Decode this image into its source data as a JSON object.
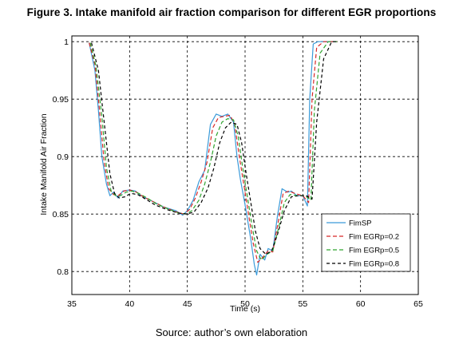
{
  "figure": {
    "title": "Figure 3. Intake manifold air fraction comparison for different EGR proportions",
    "source": "Source: author’s own elaboration"
  },
  "chart_data": {
    "type": "line",
    "xlabel": "Time (s)",
    "ylabel": "Intake Manifold Air Fraction",
    "xlim": [
      35,
      65
    ],
    "ylim": [
      0.78,
      1.005
    ],
    "xticks": [
      35,
      40,
      45,
      50,
      55,
      60,
      65
    ],
    "xtick_labels": [
      "35",
      "40",
      "45",
      "50",
      "55",
      "60",
      "65"
    ],
    "yticks": [
      0.8,
      0.85,
      0.9,
      0.95,
      1
    ],
    "ytick_labels": [
      "0.8",
      "0.85",
      "0.9",
      "0.95",
      "1"
    ],
    "grid": true,
    "legend_position": "bottom-right",
    "series": [
      {
        "name": "FimSP",
        "color": "#3a9ad9",
        "dash": "solid",
        "points": [
          [
            36.5,
            0.999
          ],
          [
            37.0,
            0.975
          ],
          [
            37.3,
            0.94
          ],
          [
            37.6,
            0.9
          ],
          [
            38.0,
            0.876
          ],
          [
            38.3,
            0.866
          ],
          [
            38.6,
            0.869
          ],
          [
            39.0,
            0.864
          ],
          [
            39.4,
            0.87
          ],
          [
            40.0,
            0.871
          ],
          [
            40.5,
            0.87
          ],
          [
            41.0,
            0.866
          ],
          [
            42.0,
            0.861
          ],
          [
            43.0,
            0.856
          ],
          [
            44.0,
            0.853
          ],
          [
            44.6,
            0.849
          ],
          [
            45.0,
            0.853
          ],
          [
            45.5,
            0.862
          ],
          [
            46.0,
            0.878
          ],
          [
            46.5,
            0.888
          ],
          [
            47.0,
            0.928
          ],
          [
            47.5,
            0.937
          ],
          [
            48.0,
            0.935
          ],
          [
            48.5,
            0.937
          ],
          [
            49.0,
            0.93
          ],
          [
            49.3,
            0.9
          ],
          [
            49.6,
            0.88
          ],
          [
            50.0,
            0.858
          ],
          [
            50.5,
            0.828
          ],
          [
            50.8,
            0.806
          ],
          [
            51.0,
            0.797
          ],
          [
            51.3,
            0.815
          ],
          [
            51.7,
            0.81
          ],
          [
            52.0,
            0.82
          ],
          [
            52.4,
            0.818
          ],
          [
            52.8,
            0.848
          ],
          [
            53.2,
            0.872
          ],
          [
            53.7,
            0.869
          ],
          [
            54.0,
            0.87
          ],
          [
            54.5,
            0.866
          ],
          [
            55.0,
            0.866
          ],
          [
            55.4,
            0.857
          ],
          [
            55.6,
            0.95
          ],
          [
            55.9,
            0.998
          ],
          [
            56.3,
            1.0
          ],
          [
            58.0,
            1.0
          ]
        ]
      },
      {
        "name": "Fim EGRp=0.2",
        "color": "#d82828",
        "dash": "5,3",
        "points": [
          [
            36.5,
            0.999
          ],
          [
            37.0,
            0.98
          ],
          [
            37.4,
            0.94
          ],
          [
            37.8,
            0.895
          ],
          [
            38.2,
            0.872
          ],
          [
            38.6,
            0.867
          ],
          [
            39.0,
            0.866
          ],
          [
            39.5,
            0.87
          ],
          [
            40.0,
            0.871
          ],
          [
            40.6,
            0.869
          ],
          [
            41.2,
            0.865
          ],
          [
            42.0,
            0.861
          ],
          [
            43.0,
            0.856
          ],
          [
            44.0,
            0.852
          ],
          [
            44.7,
            0.85
          ],
          [
            45.2,
            0.854
          ],
          [
            45.7,
            0.864
          ],
          [
            46.2,
            0.878
          ],
          [
            46.7,
            0.895
          ],
          [
            47.2,
            0.925
          ],
          [
            47.7,
            0.934
          ],
          [
            48.2,
            0.935
          ],
          [
            48.7,
            0.936
          ],
          [
            49.1,
            0.928
          ],
          [
            49.5,
            0.9
          ],
          [
            49.9,
            0.875
          ],
          [
            50.3,
            0.85
          ],
          [
            50.7,
            0.825
          ],
          [
            51.1,
            0.808
          ],
          [
            51.5,
            0.812
          ],
          [
            52.0,
            0.818
          ],
          [
            52.4,
            0.817
          ],
          [
            52.9,
            0.845
          ],
          [
            53.3,
            0.868
          ],
          [
            53.8,
            0.87
          ],
          [
            54.3,
            0.868
          ],
          [
            55.0,
            0.866
          ],
          [
            55.5,
            0.86
          ],
          [
            55.8,
            0.95
          ],
          [
            56.2,
            0.995
          ],
          [
            56.8,
            1.0
          ],
          [
            58.0,
            1.0
          ]
        ]
      },
      {
        "name": "Fim EGRp=0.5",
        "color": "#2ea32e",
        "dash": "5,3",
        "points": [
          [
            36.6,
            0.999
          ],
          [
            37.1,
            0.978
          ],
          [
            37.6,
            0.935
          ],
          [
            38.0,
            0.89
          ],
          [
            38.4,
            0.87
          ],
          [
            38.8,
            0.866
          ],
          [
            39.2,
            0.866
          ],
          [
            39.7,
            0.869
          ],
          [
            40.2,
            0.87
          ],
          [
            40.8,
            0.868
          ],
          [
            41.5,
            0.864
          ],
          [
            42.3,
            0.859
          ],
          [
            43.2,
            0.855
          ],
          [
            44.2,
            0.851
          ],
          [
            44.9,
            0.85
          ],
          [
            45.4,
            0.853
          ],
          [
            46.0,
            0.862
          ],
          [
            46.5,
            0.876
          ],
          [
            47.0,
            0.895
          ],
          [
            47.5,
            0.918
          ],
          [
            48.0,
            0.93
          ],
          [
            48.5,
            0.933
          ],
          [
            49.0,
            0.932
          ],
          [
            49.4,
            0.918
          ],
          [
            49.8,
            0.89
          ],
          [
            50.2,
            0.865
          ],
          [
            50.6,
            0.84
          ],
          [
            51.0,
            0.818
          ],
          [
            51.4,
            0.81
          ],
          [
            51.9,
            0.815
          ],
          [
            52.4,
            0.818
          ],
          [
            52.9,
            0.838
          ],
          [
            53.4,
            0.86
          ],
          [
            53.9,
            0.867
          ],
          [
            54.5,
            0.866
          ],
          [
            55.2,
            0.866
          ],
          [
            55.7,
            0.862
          ],
          [
            56.0,
            0.94
          ],
          [
            56.5,
            0.99
          ],
          [
            57.2,
            1.0
          ],
          [
            58.0,
            1.0
          ]
        ]
      },
      {
        "name": "Fim EGRp=0.8",
        "color": "#000000",
        "dash": "4,3",
        "points": [
          [
            36.7,
            0.999
          ],
          [
            37.3,
            0.975
          ],
          [
            37.8,
            0.93
          ],
          [
            38.3,
            0.885
          ],
          [
            38.7,
            0.868
          ],
          [
            39.1,
            0.864
          ],
          [
            39.6,
            0.865
          ],
          [
            40.1,
            0.868
          ],
          [
            40.7,
            0.867
          ],
          [
            41.4,
            0.863
          ],
          [
            42.2,
            0.858
          ],
          [
            43.2,
            0.854
          ],
          [
            44.2,
            0.851
          ],
          [
            45.0,
            0.85
          ],
          [
            45.6,
            0.852
          ],
          [
            46.2,
            0.86
          ],
          [
            46.8,
            0.873
          ],
          [
            47.3,
            0.89
          ],
          [
            47.8,
            0.912
          ],
          [
            48.3,
            0.925
          ],
          [
            48.8,
            0.93
          ],
          [
            49.3,
            0.928
          ],
          [
            49.7,
            0.912
          ],
          [
            50.1,
            0.885
          ],
          [
            50.5,
            0.86
          ],
          [
            50.9,
            0.835
          ],
          [
            51.3,
            0.82
          ],
          [
            51.8,
            0.815
          ],
          [
            52.3,
            0.818
          ],
          [
            52.8,
            0.832
          ],
          [
            53.4,
            0.853
          ],
          [
            54.0,
            0.865
          ],
          [
            54.6,
            0.866
          ],
          [
            55.3,
            0.866
          ],
          [
            55.8,
            0.863
          ],
          [
            56.2,
            0.93
          ],
          [
            56.8,
            0.985
          ],
          [
            57.5,
            1.0
          ],
          [
            58.0,
            1.0
          ]
        ]
      }
    ]
  }
}
